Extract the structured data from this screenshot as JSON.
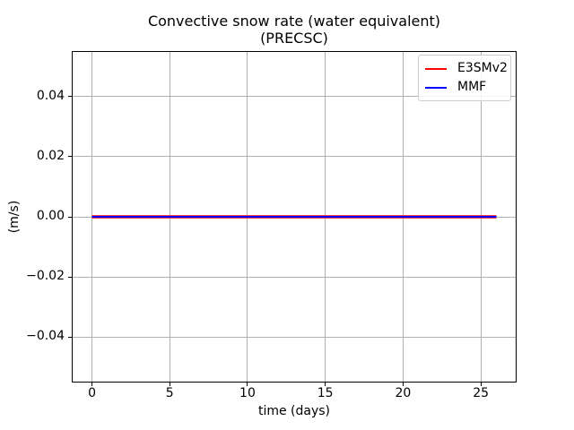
{
  "header": {
    "title_line1": "Convective snow rate (water equivalent)",
    "title_line2": "(PRECSC)"
  },
  "colors": {
    "background": "#ffffff",
    "grid": "#b0b0b0",
    "spine": "#000000",
    "legend_border": "#cccccc",
    "e3smv2_red": "#ff0000",
    "mmf_blue": "#0000ff"
  },
  "chart_data": {
    "type": "line",
    "title": "Convective snow rate (water equivalent)\n(PRECSC)",
    "xlabel": "time (days)",
    "ylabel": "(m/s)",
    "xlim": [
      -1.3,
      27.3
    ],
    "ylim": [
      -0.0552,
      0.0552
    ],
    "xticks": [
      0,
      5,
      10,
      15,
      20,
      25
    ],
    "xtick_labels": [
      "0",
      "5",
      "10",
      "15",
      "20",
      "25"
    ],
    "yticks": [
      0.04,
      0.02,
      0.0,
      -0.02,
      -0.04
    ],
    "ytick_labels": [
      "0.04",
      "0.02",
      "0.00",
      "−0.02",
      "−0.04"
    ],
    "grid": true,
    "legend_position": "upper right",
    "series": [
      {
        "name": "E3SMv2",
        "color": "#ff0000",
        "x": [
          0,
          26
        ],
        "y": [
          0.0,
          0.0
        ]
      },
      {
        "name": "MMF",
        "color": "#0000ff",
        "x": [
          0,
          26
        ],
        "y": [
          0.0,
          0.0
        ]
      }
    ]
  }
}
